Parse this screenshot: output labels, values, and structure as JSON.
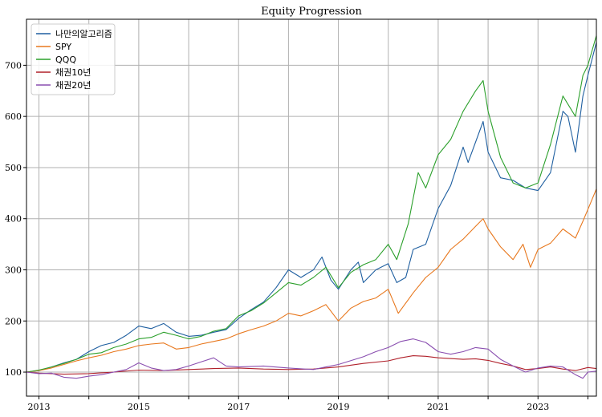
{
  "chart_data": {
    "type": "line",
    "title": "Equity Progression",
    "xlabel": "",
    "ylabel": "",
    "xlim": [
      2012.75,
      2024.17
    ],
    "ylim": [
      53,
      790
    ],
    "grid": true,
    "legend_position": "top-left",
    "x_ticks": [
      {
        "value": 2013,
        "label": "2013"
      },
      {
        "value": 2015,
        "label": "2015"
      },
      {
        "value": 2017,
        "label": "2017"
      },
      {
        "value": 2019,
        "label": "2019"
      },
      {
        "value": 2021,
        "label": "2021"
      },
      {
        "value": 2023,
        "label": "2023"
      }
    ],
    "x_grid_minor": [
      2014,
      2016,
      2018,
      2020,
      2022,
      2024
    ],
    "y_ticks": [
      100,
      200,
      300,
      400,
      500,
      600,
      700
    ],
    "series": [
      {
        "name": "나만의알고리즘",
        "color": "#1f5fa0",
        "points": [
          [
            2012.75,
            100
          ],
          [
            2013.0,
            103
          ],
          [
            2013.25,
            110
          ],
          [
            2013.5,
            118
          ],
          [
            2013.75,
            125
          ],
          [
            2014.0,
            140
          ],
          [
            2014.25,
            152
          ],
          [
            2014.5,
            158
          ],
          [
            2014.75,
            172
          ],
          [
            2015.0,
            190
          ],
          [
            2015.25,
            185
          ],
          [
            2015.5,
            195
          ],
          [
            2015.75,
            178
          ],
          [
            2016.0,
            170
          ],
          [
            2016.25,
            172
          ],
          [
            2016.5,
            178
          ],
          [
            2016.75,
            183
          ],
          [
            2017.0,
            205
          ],
          [
            2017.25,
            222
          ],
          [
            2017.5,
            237
          ],
          [
            2017.75,
            265
          ],
          [
            2018.0,
            300
          ],
          [
            2018.25,
            285
          ],
          [
            2018.5,
            300
          ],
          [
            2018.67,
            325
          ],
          [
            2018.85,
            280
          ],
          [
            2019.0,
            262
          ],
          [
            2019.25,
            300
          ],
          [
            2019.4,
            315
          ],
          [
            2019.5,
            275
          ],
          [
            2019.75,
            300
          ],
          [
            2020.0,
            312
          ],
          [
            2020.17,
            275
          ],
          [
            2020.35,
            285
          ],
          [
            2020.5,
            340
          ],
          [
            2020.75,
            350
          ],
          [
            2021.0,
            420
          ],
          [
            2021.25,
            465
          ],
          [
            2021.5,
            540
          ],
          [
            2021.6,
            510
          ],
          [
            2021.9,
            590
          ],
          [
            2022.0,
            530
          ],
          [
            2022.25,
            480
          ],
          [
            2022.5,
            475
          ],
          [
            2022.75,
            460
          ],
          [
            2023.0,
            455
          ],
          [
            2023.25,
            490
          ],
          [
            2023.5,
            610
          ],
          [
            2023.6,
            600
          ],
          [
            2023.75,
            530
          ],
          [
            2023.9,
            640
          ],
          [
            2024.0,
            680
          ],
          [
            2024.17,
            745
          ]
        ]
      },
      {
        "name": "SPY",
        "color": "#e8781e",
        "points": [
          [
            2012.75,
            100
          ],
          [
            2013.0,
            103
          ],
          [
            2013.25,
            108
          ],
          [
            2013.5,
            115
          ],
          [
            2013.75,
            122
          ],
          [
            2014.0,
            128
          ],
          [
            2014.25,
            133
          ],
          [
            2014.5,
            140
          ],
          [
            2014.75,
            145
          ],
          [
            2015.0,
            152
          ],
          [
            2015.25,
            155
          ],
          [
            2015.5,
            157
          ],
          [
            2015.75,
            145
          ],
          [
            2016.0,
            148
          ],
          [
            2016.25,
            155
          ],
          [
            2016.5,
            160
          ],
          [
            2016.75,
            165
          ],
          [
            2017.0,
            175
          ],
          [
            2017.25,
            183
          ],
          [
            2017.5,
            190
          ],
          [
            2017.75,
            200
          ],
          [
            2018.0,
            215
          ],
          [
            2018.25,
            210
          ],
          [
            2018.5,
            220
          ],
          [
            2018.75,
            232
          ],
          [
            2019.0,
            200
          ],
          [
            2019.25,
            225
          ],
          [
            2019.5,
            238
          ],
          [
            2019.75,
            245
          ],
          [
            2020.0,
            262
          ],
          [
            2020.2,
            215
          ],
          [
            2020.5,
            255
          ],
          [
            2020.75,
            285
          ],
          [
            2021.0,
            305
          ],
          [
            2021.25,
            340
          ],
          [
            2021.5,
            360
          ],
          [
            2021.75,
            385
          ],
          [
            2021.9,
            400
          ],
          [
            2022.0,
            380
          ],
          [
            2022.25,
            345
          ],
          [
            2022.5,
            320
          ],
          [
            2022.7,
            350
          ],
          [
            2022.85,
            305
          ],
          [
            2023.0,
            340
          ],
          [
            2023.25,
            352
          ],
          [
            2023.5,
            380
          ],
          [
            2023.75,
            362
          ],
          [
            2023.9,
            395
          ],
          [
            2024.0,
            418
          ],
          [
            2024.17,
            458
          ]
        ]
      },
      {
        "name": "QQQ",
        "color": "#2ca02c",
        "points": [
          [
            2012.75,
            100
          ],
          [
            2013.0,
            104
          ],
          [
            2013.25,
            110
          ],
          [
            2013.5,
            117
          ],
          [
            2013.75,
            125
          ],
          [
            2014.0,
            135
          ],
          [
            2014.25,
            138
          ],
          [
            2014.5,
            148
          ],
          [
            2014.75,
            155
          ],
          [
            2015.0,
            165
          ],
          [
            2015.25,
            168
          ],
          [
            2015.5,
            178
          ],
          [
            2015.75,
            172
          ],
          [
            2016.0,
            165
          ],
          [
            2016.25,
            170
          ],
          [
            2016.5,
            180
          ],
          [
            2016.75,
            185
          ],
          [
            2017.0,
            210
          ],
          [
            2017.25,
            220
          ],
          [
            2017.5,
            235
          ],
          [
            2017.75,
            255
          ],
          [
            2018.0,
            275
          ],
          [
            2018.25,
            270
          ],
          [
            2018.5,
            285
          ],
          [
            2018.75,
            305
          ],
          [
            2019.0,
            265
          ],
          [
            2019.25,
            295
          ],
          [
            2019.5,
            310
          ],
          [
            2019.75,
            320
          ],
          [
            2020.0,
            350
          ],
          [
            2020.17,
            320
          ],
          [
            2020.4,
            390
          ],
          [
            2020.6,
            490
          ],
          [
            2020.75,
            460
          ],
          [
            2021.0,
            525
          ],
          [
            2021.25,
            555
          ],
          [
            2021.5,
            610
          ],
          [
            2021.75,
            650
          ],
          [
            2021.9,
            670
          ],
          [
            2022.0,
            610
          ],
          [
            2022.25,
            520
          ],
          [
            2022.5,
            470
          ],
          [
            2022.75,
            460
          ],
          [
            2023.0,
            470
          ],
          [
            2023.25,
            545
          ],
          [
            2023.5,
            640
          ],
          [
            2023.75,
            600
          ],
          [
            2023.9,
            680
          ],
          [
            2024.0,
            700
          ],
          [
            2024.17,
            758
          ]
        ]
      },
      {
        "name": "채권10년",
        "color": "#b0202a",
        "points": [
          [
            2012.75,
            100
          ],
          [
            2013.0,
            98
          ],
          [
            2013.5,
            96
          ],
          [
            2014.0,
            97
          ],
          [
            2014.5,
            100
          ],
          [
            2015.0,
            104
          ],
          [
            2015.5,
            103
          ],
          [
            2016.0,
            105
          ],
          [
            2016.5,
            107
          ],
          [
            2017.0,
            108
          ],
          [
            2017.5,
            106
          ],
          [
            2018.0,
            105
          ],
          [
            2018.5,
            106
          ],
          [
            2019.0,
            110
          ],
          [
            2019.5,
            117
          ],
          [
            2020.0,
            122
          ],
          [
            2020.25,
            128
          ],
          [
            2020.5,
            132
          ],
          [
            2020.75,
            131
          ],
          [
            2021.0,
            128
          ],
          [
            2021.5,
            125
          ],
          [
            2021.75,
            126
          ],
          [
            2022.0,
            123
          ],
          [
            2022.25,
            117
          ],
          [
            2022.5,
            112
          ],
          [
            2022.75,
            105
          ],
          [
            2023.0,
            107
          ],
          [
            2023.25,
            110
          ],
          [
            2023.5,
            106
          ],
          [
            2023.75,
            103
          ],
          [
            2024.0,
            109
          ],
          [
            2024.17,
            107
          ]
        ]
      },
      {
        "name": "채권20년",
        "color": "#8a4fb0",
        "points": [
          [
            2012.75,
            100
          ],
          [
            2013.0,
            97
          ],
          [
            2013.25,
            98
          ],
          [
            2013.5,
            90
          ],
          [
            2013.75,
            88
          ],
          [
            2014.0,
            92
          ],
          [
            2014.25,
            95
          ],
          [
            2014.5,
            100
          ],
          [
            2014.75,
            105
          ],
          [
            2015.0,
            118
          ],
          [
            2015.25,
            108
          ],
          [
            2015.5,
            103
          ],
          [
            2015.75,
            105
          ],
          [
            2016.0,
            112
          ],
          [
            2016.5,
            128
          ],
          [
            2016.75,
            112
          ],
          [
            2017.0,
            110
          ],
          [
            2017.5,
            112
          ],
          [
            2018.0,
            108
          ],
          [
            2018.5,
            105
          ],
          [
            2018.75,
            110
          ],
          [
            2019.0,
            115
          ],
          [
            2019.5,
            130
          ],
          [
            2019.75,
            140
          ],
          [
            2020.0,
            148
          ],
          [
            2020.25,
            160
          ],
          [
            2020.5,
            165
          ],
          [
            2020.75,
            158
          ],
          [
            2021.0,
            140
          ],
          [
            2021.25,
            135
          ],
          [
            2021.5,
            140
          ],
          [
            2021.75,
            148
          ],
          [
            2022.0,
            145
          ],
          [
            2022.25,
            125
          ],
          [
            2022.5,
            112
          ],
          [
            2022.75,
            100
          ],
          [
            2023.0,
            108
          ],
          [
            2023.25,
            112
          ],
          [
            2023.5,
            110
          ],
          [
            2023.75,
            95
          ],
          [
            2023.9,
            88
          ],
          [
            2024.0,
            100
          ],
          [
            2024.17,
            102
          ]
        ]
      }
    ]
  }
}
